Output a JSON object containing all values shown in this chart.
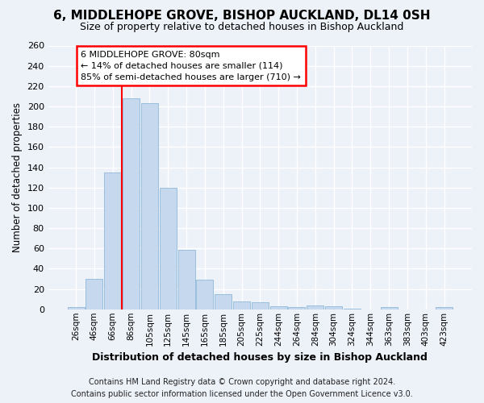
{
  "title": "6, MIDDLEHOPE GROVE, BISHOP AUCKLAND, DL14 0SH",
  "subtitle": "Size of property relative to detached houses in Bishop Auckland",
  "xlabel": "Distribution of detached houses by size in Bishop Auckland",
  "ylabel": "Number of detached properties",
  "categories": [
    "26sqm",
    "46sqm",
    "66sqm",
    "86sqm",
    "105sqm",
    "125sqm",
    "145sqm",
    "165sqm",
    "185sqm",
    "205sqm",
    "225sqm",
    "244sqm",
    "264sqm",
    "284sqm",
    "304sqm",
    "324sqm",
    "344sqm",
    "363sqm",
    "383sqm",
    "403sqm",
    "423sqm"
  ],
  "values": [
    2,
    30,
    135,
    208,
    203,
    120,
    59,
    29,
    15,
    8,
    7,
    3,
    2,
    4,
    3,
    1,
    0,
    2,
    0,
    0,
    2
  ],
  "bar_color": "#c5d8ee",
  "bar_edgecolor": "#8fb8d8",
  "background_color": "#edf1f8",
  "grid_color": "#ffffff",
  "annotation_line1": "6 MIDDLEHOPE GROVE: 80sqm",
  "annotation_line2": "← 14% of detached houses are smaller (114)",
  "annotation_line3": "85% of semi-detached houses are larger (710) →",
  "footer_line1": "Contains HM Land Registry data © Crown copyright and database right 2024.",
  "footer_line2": "Contains public sector information licensed under the Open Government Licence v3.0.",
  "ylim": [
    0,
    260
  ],
  "yticks": [
    0,
    20,
    40,
    60,
    80,
    100,
    120,
    140,
    160,
    180,
    200,
    220,
    240,
    260
  ],
  "red_line_index": 2.5
}
